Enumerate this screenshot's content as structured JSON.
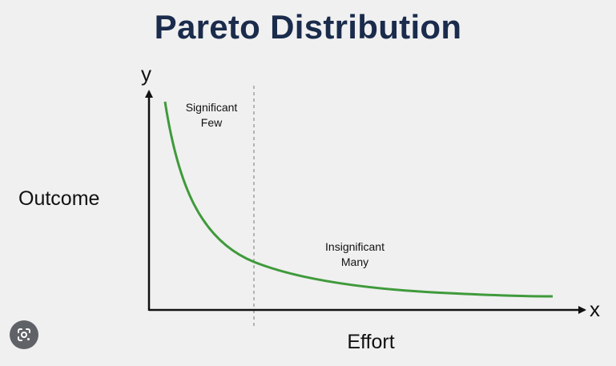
{
  "title": "Pareto Distribution",
  "axes": {
    "y_letter": "y",
    "x_letter": "x",
    "y_label": "Outcome",
    "x_label": "Effort"
  },
  "annotations": {
    "left_line1": "Significant",
    "left_line2": "Few",
    "right_line1": "Insignificant",
    "right_line2": "Many"
  },
  "colors": {
    "title": "#1a2b4c",
    "curve": "#3f9a3b",
    "axis": "#111111",
    "divider": "#777777",
    "background": "#f0f0f0"
  },
  "icons": {
    "lens": "google-lens-icon"
  }
}
